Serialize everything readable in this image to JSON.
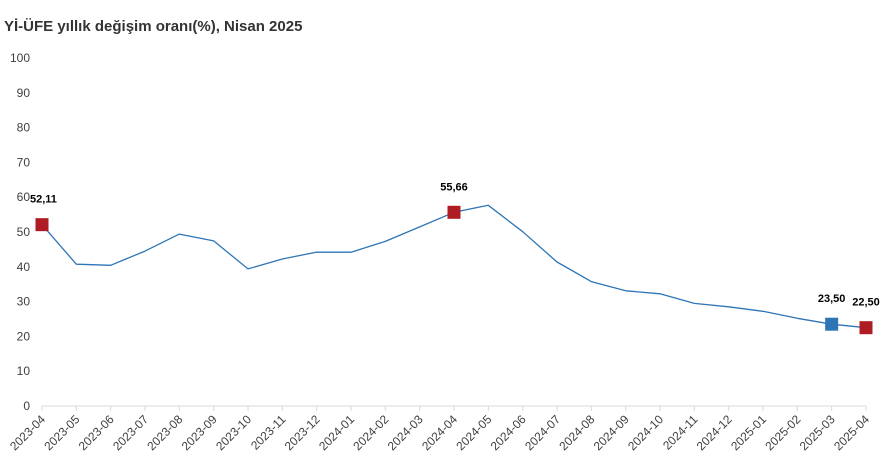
{
  "chart_data": {
    "type": "line",
    "title": "Yİ-ÜFE yıllık değişim oranı(%), Nisan 2025",
    "xlabel": "",
    "ylabel": "",
    "ylim": [
      0,
      100
    ],
    "yticks": [
      "0",
      "10",
      "20",
      "30",
      "40",
      "50",
      "60",
      "70",
      "80",
      "90",
      "100"
    ],
    "grid": false,
    "legend": "none",
    "categories": [
      "2023-04",
      "2023-05",
      "2023-06",
      "2023-07",
      "2023-08",
      "2023-09",
      "2023-10",
      "2023-11",
      "2023-12",
      "2024-01",
      "2024-02",
      "2024-03",
      "2024-04",
      "2024-05",
      "2024-06",
      "2024-07",
      "2024-08",
      "2024-09",
      "2024-10",
      "2024-11",
      "2024-12",
      "2025-01",
      "2025-02",
      "2025-03",
      "2025-04"
    ],
    "series": [
      {
        "values": [
          52.11,
          40.76,
          40.42,
          44.5,
          49.41,
          47.44,
          39.39,
          42.25,
          44.22,
          44.2,
          47.29,
          51.47,
          55.66,
          57.68,
          50.09,
          41.37,
          35.75,
          33.09,
          32.24,
          29.47,
          28.52,
          27.2,
          25.21,
          23.5,
          22.5
        ],
        "color": "#2e75b6"
      }
    ],
    "highlights": [
      {
        "category": "2023-04",
        "value": 52.11,
        "label": "52,11",
        "color": "#b01c23"
      },
      {
        "category": "2024-04",
        "value": 55.66,
        "label": "55,66",
        "color": "#b01c23"
      },
      {
        "category": "2025-03",
        "value": 23.5,
        "label": "23,50",
        "color": "#2e75b6"
      },
      {
        "category": "2025-04",
        "value": 22.5,
        "label": "22,50",
        "color": "#b01c23"
      }
    ],
    "colors": {
      "line": "#2e75b6",
      "axis": "#d9d9d9",
      "text": "#404040"
    }
  }
}
